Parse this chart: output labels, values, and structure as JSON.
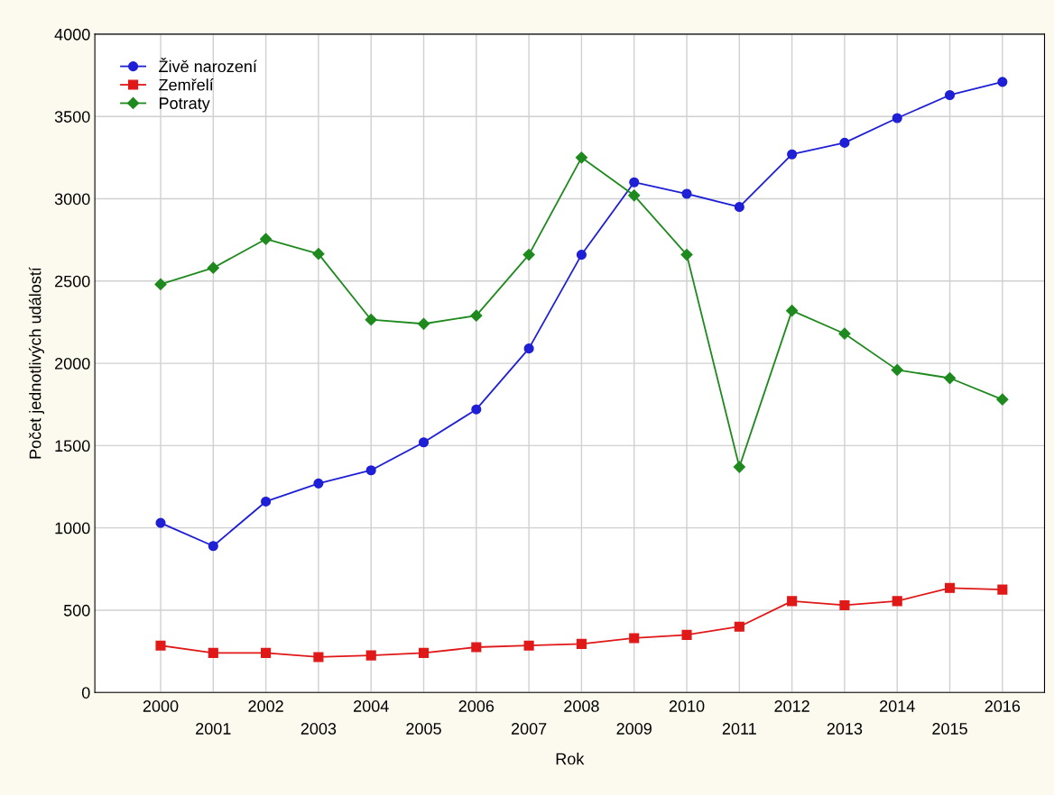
{
  "chart_data": {
    "type": "line",
    "xlabel": "Rok",
    "ylabel": "Počet jednotlivých událostí",
    "categories": [
      "2000",
      "2001",
      "2002",
      "2003",
      "2004",
      "2005",
      "2006",
      "2007",
      "2008",
      "2009",
      "2010",
      "2011",
      "2012",
      "2013",
      "2014",
      "2015",
      "2016"
    ],
    "series": [
      {
        "name": "Živě narození",
        "color": "#1f1fd6",
        "marker": "circle",
        "values": [
          1030,
          890,
          1160,
          1270,
          1350,
          1520,
          1720,
          2090,
          2660,
          3100,
          3030,
          2950,
          3270,
          3340,
          3490,
          3630,
          3710
        ]
      },
      {
        "name": "Zemřelí",
        "color": "#e01818",
        "marker": "square",
        "values": [
          285,
          240,
          240,
          215,
          225,
          240,
          275,
          285,
          295,
          330,
          350,
          400,
          555,
          530,
          555,
          635,
          625
        ]
      },
      {
        "name": "Potraty",
        "color": "#1e8a1e",
        "marker": "diamond",
        "values": [
          2480,
          2580,
          2755,
          2665,
          2265,
          2240,
          2290,
          2660,
          3250,
          3020,
          2660,
          1370,
          2320,
          2180,
          1960,
          1910,
          1780
        ]
      }
    ],
    "ylim": [
      0,
      4000
    ],
    "yticks": [
      0,
      500,
      1000,
      1500,
      2000,
      2500,
      3000,
      3500,
      4000
    ],
    "grid": true,
    "legend": "top left",
    "line_style": "solid"
  }
}
